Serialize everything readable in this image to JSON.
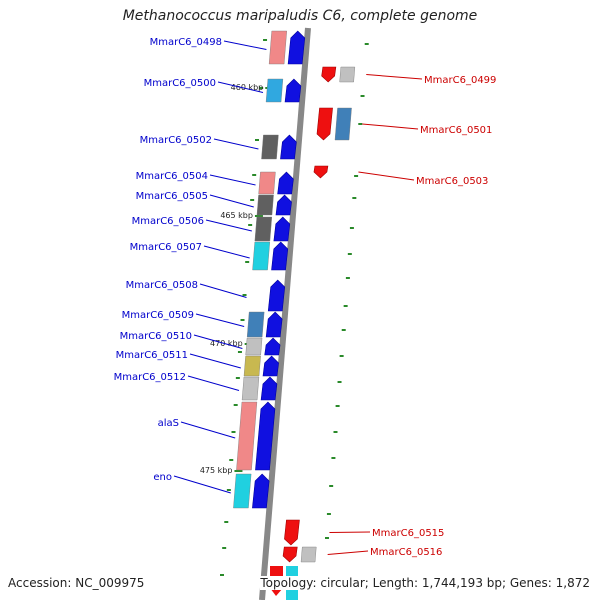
{
  "title": "Methanococcus maripaludis C6, complete genome",
  "footer": {
    "accession": "Accession: NC_009975",
    "summary": "Topology: circular; Length: 1,744,193 bp; Genes: 1,872"
  },
  "colors": {
    "forward_label": "#0000cc",
    "reverse_label": "#cc0000",
    "backbone": "#888888",
    "tick": "#2a8a2a"
  },
  "ruler": [
    "460 kbp",
    "465 kbp",
    "470 kbp",
    "475 kbp"
  ],
  "forward_genes": [
    {
      "label": "MmarC6_0498",
      "cog": "pink"
    },
    {
      "label": "MmarC6_0500",
      "cog": "cyan-blue"
    },
    {
      "label": "MmarC6_0502",
      "cog": "dark-gray"
    },
    {
      "label": "MmarC6_0504",
      "cog": "pink"
    },
    {
      "label": "MmarC6_0505",
      "cog": "dark-gray"
    },
    {
      "label": "MmarC6_0506",
      "cog": "dark-gray"
    },
    {
      "label": "MmarC6_0507",
      "cog": "cyan"
    },
    {
      "label": "MmarC6_0508",
      "cog": "none"
    },
    {
      "label": "MmarC6_0509",
      "cog": "steel-blue"
    },
    {
      "label": "MmarC6_0510",
      "cog": "light-gray"
    },
    {
      "label": "MmarC6_0511",
      "cog": "olive"
    },
    {
      "label": "MmarC6_0512",
      "cog": "light-gray"
    },
    {
      "label": "alaS",
      "cog": "pink"
    },
    {
      "label": "eno",
      "cog": "cyan"
    }
  ],
  "reverse_genes": [
    {
      "label": "MmarC6_0499",
      "cog": "light-gray"
    },
    {
      "label": "MmarC6_0501",
      "cog": "steel-blue"
    },
    {
      "label": "MmarC6_0503",
      "cog": "none"
    },
    {
      "label": "MmarC6_0515",
      "cog": "none"
    },
    {
      "label": "MmarC6_0516",
      "cog": "light-gray"
    }
  ]
}
